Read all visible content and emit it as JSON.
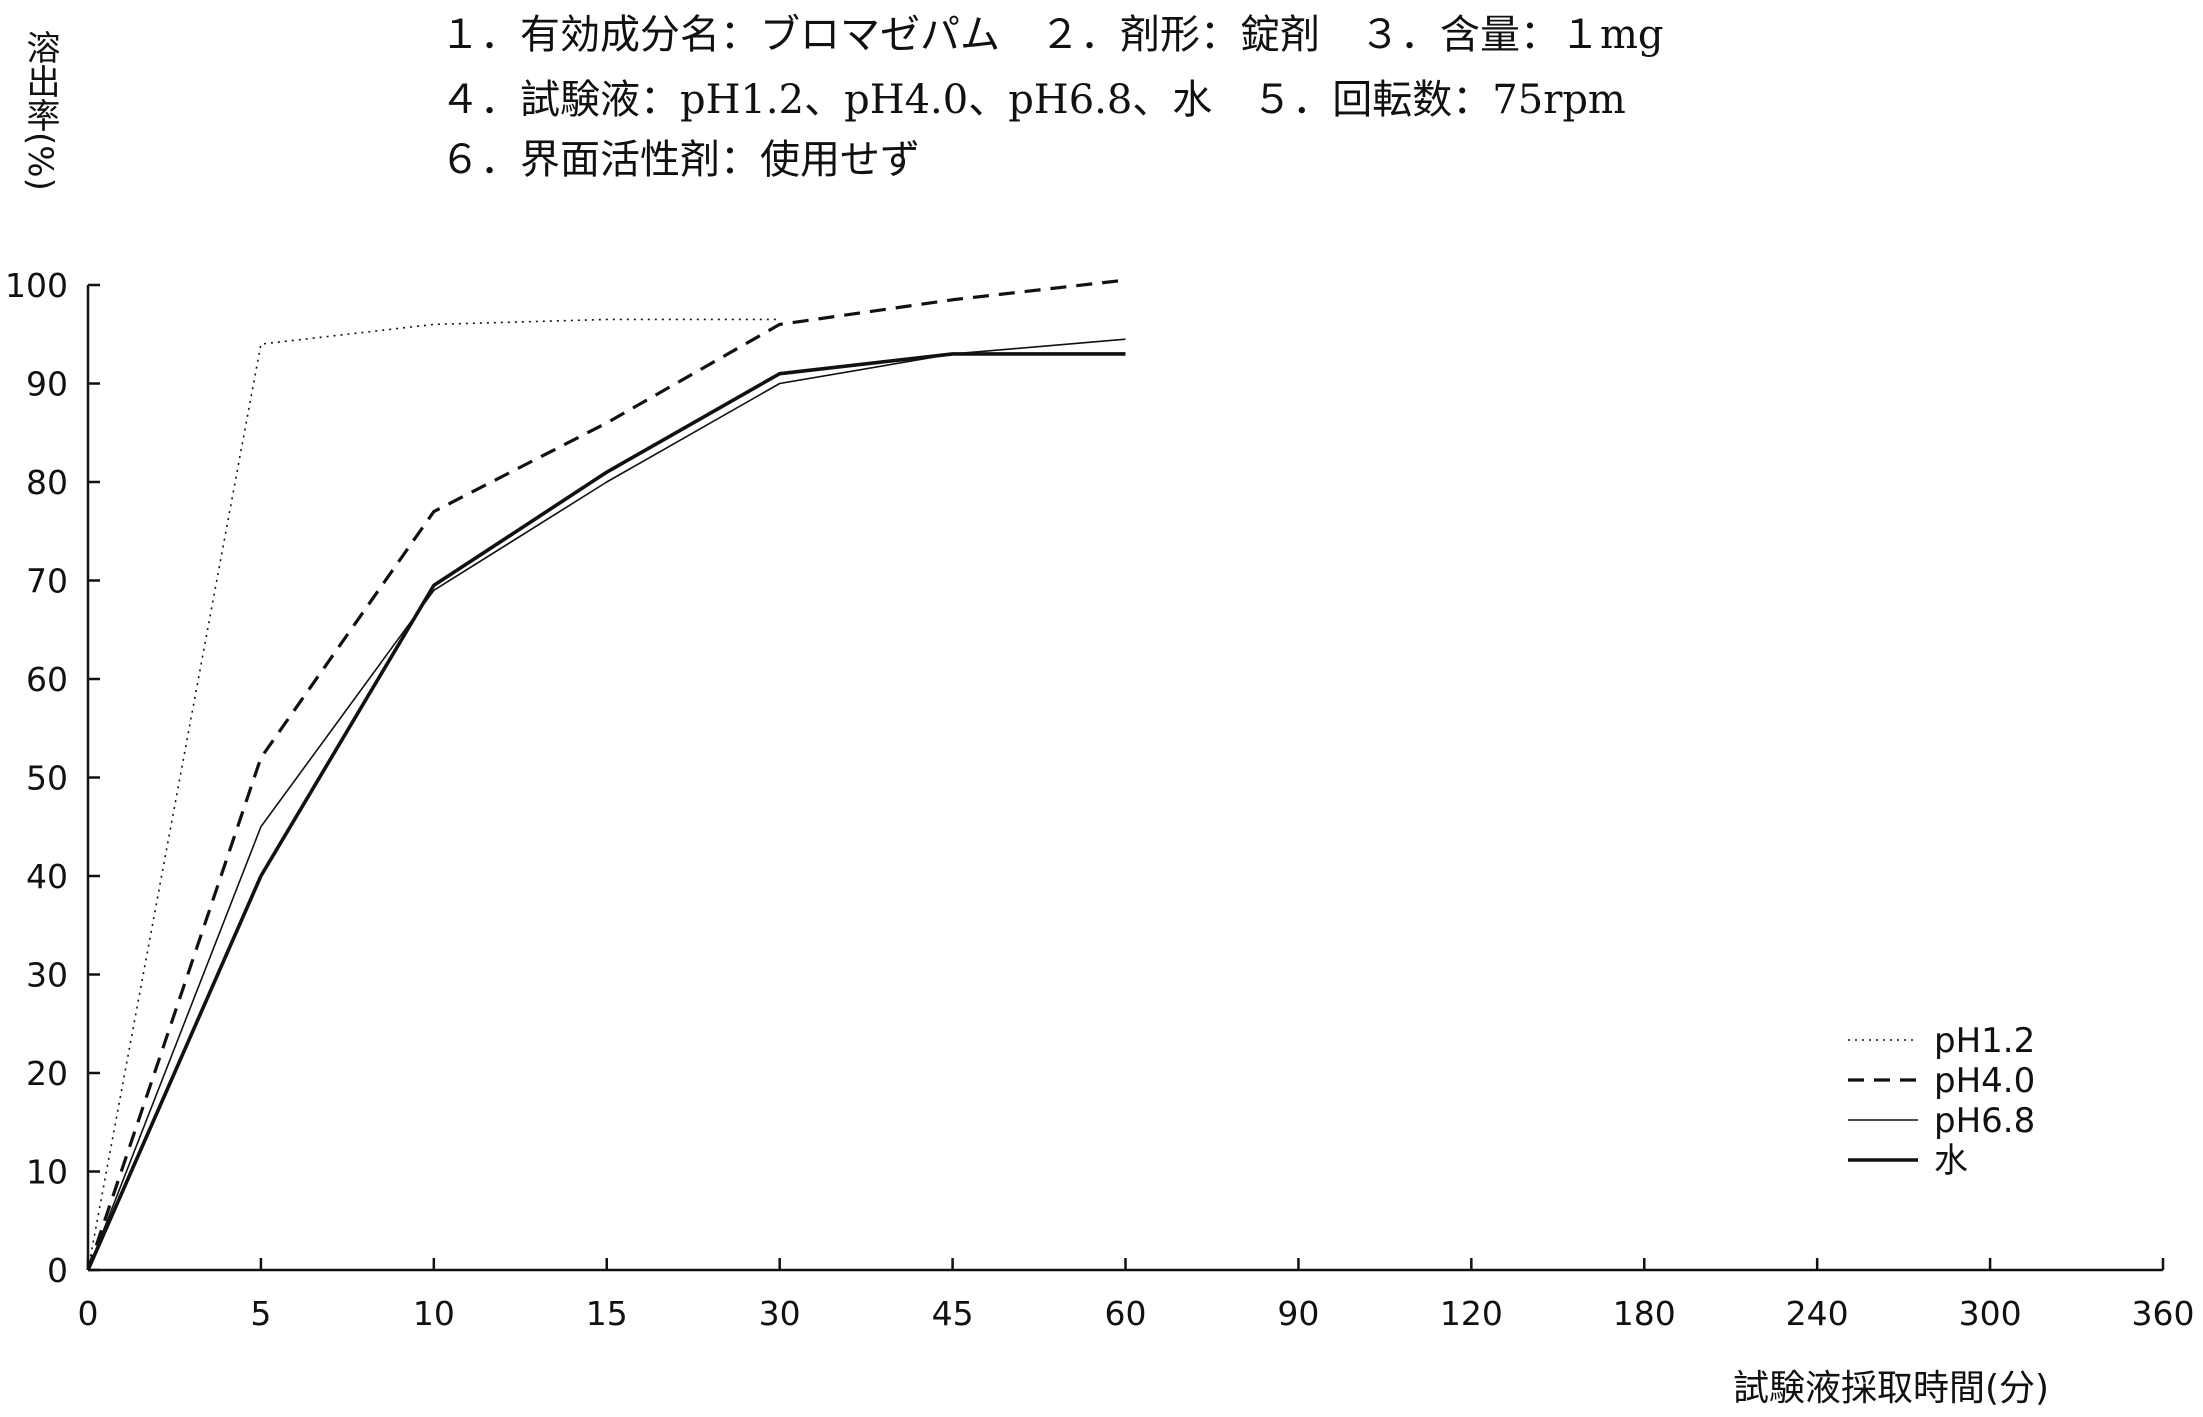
{
  "header": {
    "lines": [
      "１．有効成分名：ブロマゼパム　２．剤形：錠剤　３．含量：１mg",
      "４．試験液：pH1.2、pH4.0、pH6.8、水　５．回転数：75rpm",
      "６．界面活性剤：使用せず"
    ]
  },
  "chart_data": {
    "type": "line",
    "ylabel": "溶出率(%)",
    "xlabel": "試験液採取時間(分)",
    "x_categories": [
      "0",
      "5",
      "10",
      "15",
      "30",
      "45",
      "60",
      "90",
      "120",
      "180",
      "240",
      "300",
      "360"
    ],
    "y_ticks": [
      "0",
      "10",
      "20",
      "30",
      "40",
      "50",
      "60",
      "70",
      "80",
      "90",
      "100"
    ],
    "ylim": [
      0,
      100
    ],
    "x_scale": "categorical (equal spacing between listed sampling times)",
    "grid": false,
    "legend_position": "bottom-right",
    "series": [
      {
        "name": "pH1.2",
        "style": "dotted",
        "x": [
          "0",
          "5",
          "10",
          "15",
          "30"
        ],
        "y": [
          0,
          94,
          96,
          96.5,
          96.5
        ]
      },
      {
        "name": "pH4.0",
        "style": "dashed",
        "x": [
          "0",
          "5",
          "10",
          "15",
          "30",
          "45",
          "60"
        ],
        "y": [
          0,
          52,
          77,
          86,
          96,
          98.5,
          100.5
        ]
      },
      {
        "name": "pH6.8",
        "style": "thin-solid",
        "x": [
          "0",
          "5",
          "10",
          "15",
          "30",
          "45",
          "60"
        ],
        "y": [
          0,
          45,
          69,
          80,
          90,
          93,
          94.5
        ]
      },
      {
        "name": "水",
        "style": "thick-solid",
        "x": [
          "0",
          "5",
          "10",
          "15",
          "30",
          "45",
          "60"
        ],
        "y": [
          0,
          40,
          69.5,
          81,
          91,
          93,
          93
        ]
      }
    ]
  }
}
